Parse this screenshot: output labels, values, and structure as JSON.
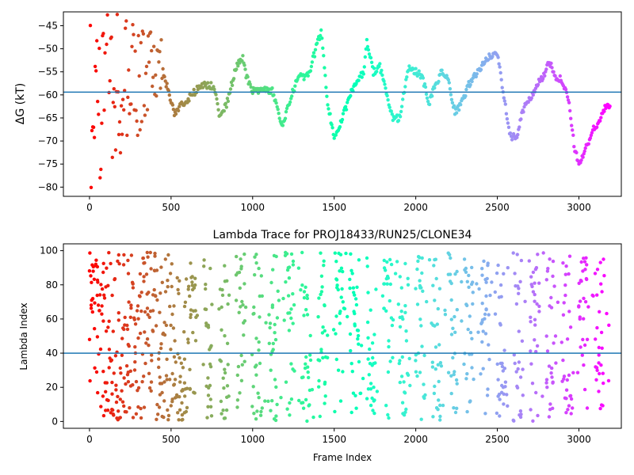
{
  "chart_data": [
    {
      "type": "scatter",
      "title": "",
      "xlabel": "",
      "ylabel": "ΔG (kT)",
      "xlim": [
        -160,
        3260
      ],
      "ylim": [
        -82,
        -42
      ],
      "xticks": [
        "0",
        "500",
        "1000",
        "1500",
        "2000",
        "2500",
        "3000"
      ],
      "yticks": [
        "−45",
        "−50",
        "−55",
        "−60",
        "−65",
        "−70",
        "−75",
        "−80"
      ],
      "hline": -59.4,
      "colormap": "rainbow",
      "color_by": "frame index (reversed: early frames red, late frames violet)",
      "grid": false,
      "legend": "none",
      "series": [
        {
          "description": "free energy trace, piecewise random walk with noisy early segment",
          "x_range": [
            0,
            3190
          ],
          "points_estimated": true,
          "waypoints": [
            [
              0,
              -60
            ],
            [
              40,
              -60
            ],
            [
              100,
              -58
            ],
            [
              200,
              -60
            ],
            [
              300,
              -56
            ],
            [
              400,
              -53
            ],
            [
              450,
              -55
            ],
            [
              520,
              -64
            ],
            [
              600,
              -61
            ],
            [
              680,
              -58
            ],
            [
              760,
              -58
            ],
            [
              800,
              -65
            ],
            [
              840,
              -62
            ],
            [
              900,
              -54
            ],
            [
              940,
              -52
            ],
            [
              960,
              -56
            ],
            [
              1000,
              -59
            ],
            [
              1060,
              -59
            ],
            [
              1120,
              -59
            ],
            [
              1180,
              -67
            ],
            [
              1240,
              -60
            ],
            [
              1270,
              -57
            ],
            [
              1300,
              -56
            ],
            [
              1340,
              -56
            ],
            [
              1380,
              -51
            ],
            [
              1420,
              -46
            ],
            [
              1460,
              -62
            ],
            [
              1500,
              -69
            ],
            [
              1540,
              -66
            ],
            [
              1600,
              -60
            ],
            [
              1640,
              -57
            ],
            [
              1680,
              -55
            ],
            [
              1700,
              -48
            ],
            [
              1740,
              -55
            ],
            [
              1780,
              -54
            ],
            [
              1800,
              -56
            ],
            [
              1840,
              -63
            ],
            [
              1860,
              -65
            ],
            [
              1900,
              -65
            ],
            [
              1940,
              -57
            ],
            [
              1960,
              -54
            ],
            [
              2000,
              -55
            ],
            [
              2040,
              -56
            ],
            [
              2080,
              -62
            ],
            [
              2120,
              -58
            ],
            [
              2160,
              -55
            ],
            [
              2200,
              -57
            ],
            [
              2240,
              -64
            ],
            [
              2280,
              -62
            ],
            [
              2320,
              -58
            ],
            [
              2360,
              -56
            ],
            [
              2400,
              -54
            ],
            [
              2440,
              -52
            ],
            [
              2500,
              -51
            ],
            [
              2540,
              -60
            ],
            [
              2580,
              -69
            ],
            [
              2620,
              -69
            ],
            [
              2660,
              -63
            ],
            [
              2700,
              -61
            ],
            [
              2740,
              -58
            ],
            [
              2780,
              -56
            ],
            [
              2820,
              -53
            ],
            [
              2860,
              -56
            ],
            [
              2900,
              -57
            ],
            [
              2940,
              -62
            ],
            [
              2970,
              -71
            ],
            [
              3000,
              -75
            ],
            [
              3040,
              -72
            ],
            [
              3080,
              -68
            ],
            [
              3120,
              -66
            ],
            [
              3160,
              -63
            ],
            [
              3190,
              -62
            ]
          ]
        }
      ]
    },
    {
      "type": "scatter",
      "title": "Lambda Trace for PROJ18433/RUN25/CLONE34",
      "xlabel": "Frame Index",
      "ylabel": "Lambda Index",
      "xlim": [
        -160,
        3260
      ],
      "ylim": [
        -4,
        104
      ],
      "xticks": [
        "0",
        "500",
        "1000",
        "1500",
        "2000",
        "2500",
        "3000"
      ],
      "yticks": [
        "0",
        "20",
        "40",
        "60",
        "80",
        "100"
      ],
      "hline": 40,
      "colormap": "rainbow",
      "color_by": "frame index (reversed: early frames red, late frames violet)",
      "grid": false,
      "legend": "none",
      "series": [
        {
          "description": "lambda index per frame, ranging 0–99 with clustered bursts",
          "x_range": [
            0,
            3190
          ],
          "y_range": [
            0,
            99
          ],
          "points_estimated": true
        }
      ]
    }
  ]
}
